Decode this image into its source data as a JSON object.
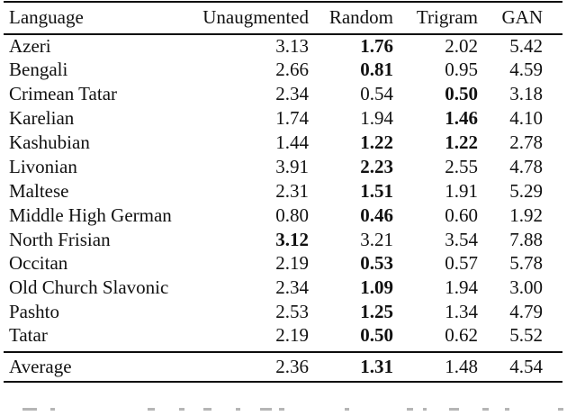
{
  "table": {
    "headers": [
      "Language",
      "Unaugmented",
      "Random",
      "Trigram",
      "GAN"
    ],
    "rows": [
      {
        "language": "Azeri",
        "values": [
          "3.13",
          "1.76",
          "2.02",
          "5.42"
        ],
        "bold": [
          false,
          true,
          false,
          false
        ]
      },
      {
        "language": "Bengali",
        "values": [
          "2.66",
          "0.81",
          "0.95",
          "4.59"
        ],
        "bold": [
          false,
          true,
          false,
          false
        ]
      },
      {
        "language": "Crimean Tatar",
        "values": [
          "2.34",
          "0.54",
          "0.50",
          "3.18"
        ],
        "bold": [
          false,
          false,
          true,
          false
        ]
      },
      {
        "language": "Karelian",
        "values": [
          "1.74",
          "1.94",
          "1.46",
          "4.10"
        ],
        "bold": [
          false,
          false,
          true,
          false
        ]
      },
      {
        "language": "Kashubian",
        "values": [
          "1.44",
          "1.22",
          "1.22",
          "2.78"
        ],
        "bold": [
          false,
          true,
          true,
          false
        ]
      },
      {
        "language": "Livonian",
        "values": [
          "3.91",
          "2.23",
          "2.55",
          "4.78"
        ],
        "bold": [
          false,
          true,
          false,
          false
        ]
      },
      {
        "language": "Maltese",
        "values": [
          "2.31",
          "1.51",
          "1.91",
          "5.29"
        ],
        "bold": [
          false,
          true,
          false,
          false
        ]
      },
      {
        "language": "Middle High German",
        "values": [
          "0.80",
          "0.46",
          "0.60",
          "1.92"
        ],
        "bold": [
          false,
          true,
          false,
          false
        ]
      },
      {
        "language": "North Frisian",
        "values": [
          "3.12",
          "3.21",
          "3.54",
          "7.88"
        ],
        "bold": [
          true,
          false,
          false,
          false
        ]
      },
      {
        "language": "Occitan",
        "values": [
          "2.19",
          "0.53",
          "0.57",
          "5.78"
        ],
        "bold": [
          false,
          true,
          false,
          false
        ]
      },
      {
        "language": "Old Church Slavonic",
        "values": [
          "2.34",
          "1.09",
          "1.94",
          "3.00"
        ],
        "bold": [
          false,
          true,
          false,
          false
        ]
      },
      {
        "language": "Pashto",
        "values": [
          "2.53",
          "1.25",
          "1.34",
          "4.79"
        ],
        "bold": [
          false,
          true,
          false,
          false
        ]
      },
      {
        "language": "Tatar",
        "values": [
          "2.19",
          "0.50",
          "0.62",
          "5.52"
        ],
        "bold": [
          false,
          true,
          false,
          false
        ]
      }
    ],
    "footer": {
      "language": "Average",
      "values": [
        "2.36",
        "1.31",
        "1.48",
        "4.54"
      ],
      "bold": [
        false,
        true,
        false,
        false
      ]
    }
  }
}
